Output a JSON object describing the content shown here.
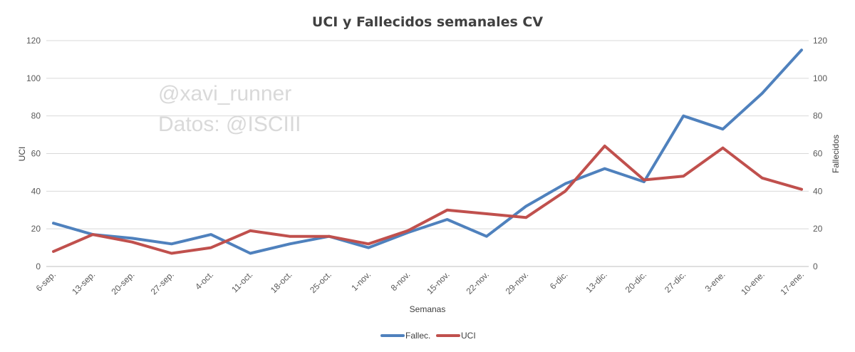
{
  "chart_data": {
    "type": "line",
    "title": "UCI y Fallecidos semanales CV",
    "xlabel": "Semanas",
    "ylabel_left": "UCI",
    "ylabel_right": "Fallecidos",
    "ylim": [
      0,
      120
    ],
    "yticks": [
      0,
      20,
      40,
      60,
      80,
      100,
      120
    ],
    "grid": true,
    "legend_position": "bottom",
    "watermark": [
      "@xavi_runner",
      "Datos: @ISCIII"
    ],
    "categories": [
      "6-sep.",
      "13-sep.",
      "20-sep.",
      "27-sep.",
      "4-oct.",
      "11-oct.",
      "18-oct.",
      "25-oct.",
      "1-nov.",
      "8-nov.",
      "15-nov.",
      "22-nov.",
      "29-nov.",
      "6-dic.",
      "13-dic.",
      "20-dic.",
      "27-dic.",
      "3-ene.",
      "10-ene.",
      "17-ene."
    ],
    "series": [
      {
        "name": "Fallec.",
        "axis": "right",
        "color": "#4f81bd",
        "values": [
          23,
          17,
          15,
          12,
          17,
          7,
          12,
          16,
          10,
          18,
          25,
          16,
          32,
          44,
          52,
          45,
          80,
          73,
          92,
          115
        ]
      },
      {
        "name": "UCI",
        "axis": "left",
        "color": "#c0504d",
        "values": [
          8,
          17,
          13,
          7,
          10,
          19,
          16,
          16,
          12,
          19,
          30,
          28,
          26,
          40,
          64,
          46,
          48,
          63,
          47,
          41
        ]
      }
    ]
  }
}
